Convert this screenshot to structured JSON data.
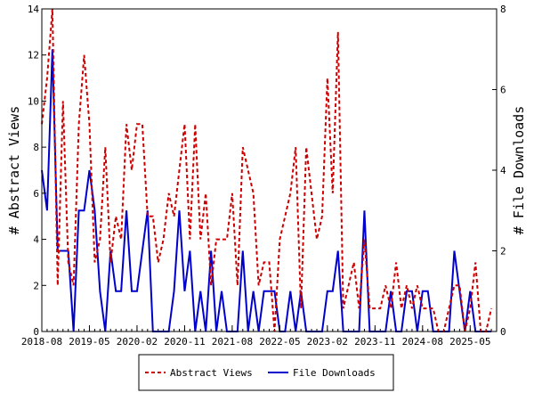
{
  "chart_data": {
    "type": "line",
    "xlabel": "",
    "ylabel": "# Abstract Views",
    "y2label": "# File Downloads",
    "ylim": [
      0,
      14
    ],
    "y2lim": [
      0,
      8
    ],
    "yticks": [
      0,
      2,
      4,
      6,
      8,
      10,
      12,
      14
    ],
    "y2ticks": [
      0,
      2,
      4,
      6,
      8
    ],
    "xlim": [
      "2018-08",
      "2025-10"
    ],
    "xtick_labels": [
      "2018-08",
      "2019-05",
      "2020-02",
      "2020-11",
      "2021-08",
      "2022-05",
      "2023-02",
      "2023-11",
      "2024-08",
      "2025-05"
    ],
    "grid": false,
    "legend_position": "bottom-center",
    "series": [
      {
        "name": "Abstract Views",
        "axis": "left",
        "color": "#cc0000",
        "style": "dashed",
        "x": [
          "2018-08",
          "2018-09",
          "2018-10",
          "2018-11",
          "2018-12",
          "2019-01",
          "2019-02",
          "2019-03",
          "2019-04",
          "2019-05",
          "2019-06",
          "2019-07",
          "2019-08",
          "2019-09",
          "2019-10",
          "2019-11",
          "2019-12",
          "2020-01",
          "2020-02",
          "2020-03",
          "2020-04",
          "2020-05",
          "2020-06",
          "2020-07",
          "2020-08",
          "2020-09",
          "2020-10",
          "2020-11",
          "2020-12",
          "2021-01",
          "2021-02",
          "2021-03",
          "2021-04",
          "2021-05",
          "2021-06",
          "2021-07",
          "2021-08",
          "2021-09",
          "2021-10",
          "2021-11",
          "2021-12",
          "2022-01",
          "2022-02",
          "2022-03",
          "2022-04",
          "2022-05",
          "2022-06",
          "2022-07",
          "2022-08",
          "2022-09",
          "2022-10",
          "2022-11",
          "2022-12",
          "2023-01",
          "2023-02",
          "2023-03",
          "2023-04",
          "2023-05",
          "2023-06",
          "2023-07",
          "2023-08",
          "2023-09",
          "2023-10",
          "2023-11",
          "2023-12",
          "2024-01",
          "2024-02",
          "2024-03",
          "2024-04",
          "2024-05",
          "2024-06",
          "2024-07",
          "2024-08",
          "2024-09",
          "2024-10",
          "2024-11",
          "2024-12",
          "2025-01",
          "2025-02",
          "2025-03",
          "2025-04",
          "2025-05",
          "2025-06",
          "2025-07",
          "2025-08",
          "2025-09"
        ],
        "values": [
          9,
          11,
          14,
          2,
          10,
          3,
          2,
          9,
          12,
          9,
          3,
          4,
          8,
          3,
          5,
          4,
          9,
          7,
          9,
          9,
          5,
          5,
          3,
          4,
          6,
          5,
          7,
          9,
          4,
          9,
          4,
          6,
          2,
          4,
          4,
          4,
          6,
          2,
          8,
          7,
          6,
          2,
          3,
          3,
          0,
          4,
          5,
          6,
          8,
          1,
          8,
          6,
          4,
          5,
          11,
          6,
          13,
          1,
          2,
          3,
          1,
          4,
          1,
          1,
          1,
          2,
          1,
          3,
          1,
          2,
          1,
          2,
          1,
          1,
          1,
          0,
          0,
          1,
          2,
          2,
          0,
          1,
          3,
          0,
          0,
          1
        ]
      },
      {
        "name": "File Downloads",
        "axis": "right",
        "color": "#0000cc",
        "style": "solid",
        "x": [
          "2018-08",
          "2018-09",
          "2018-10",
          "2018-11",
          "2018-12",
          "2019-01",
          "2019-02",
          "2019-03",
          "2019-04",
          "2019-05",
          "2019-06",
          "2019-07",
          "2019-08",
          "2019-09",
          "2019-10",
          "2019-11",
          "2019-12",
          "2020-01",
          "2020-02",
          "2020-03",
          "2020-04",
          "2020-05",
          "2020-06",
          "2020-07",
          "2020-08",
          "2020-09",
          "2020-10",
          "2020-11",
          "2020-12",
          "2021-01",
          "2021-02",
          "2021-03",
          "2021-04",
          "2021-05",
          "2021-06",
          "2021-07",
          "2021-08",
          "2021-09",
          "2021-10",
          "2021-11",
          "2021-12",
          "2022-01",
          "2022-02",
          "2022-03",
          "2022-04",
          "2022-05",
          "2022-06",
          "2022-07",
          "2022-08",
          "2022-09",
          "2022-10",
          "2022-11",
          "2022-12",
          "2023-01",
          "2023-02",
          "2023-03",
          "2023-04",
          "2023-05",
          "2023-06",
          "2023-07",
          "2023-08",
          "2023-09",
          "2023-10",
          "2023-11",
          "2023-12",
          "2024-01",
          "2024-02",
          "2024-03",
          "2024-04",
          "2024-05",
          "2024-06",
          "2024-07",
          "2024-08",
          "2024-09",
          "2024-10",
          "2024-11",
          "2024-12",
          "2025-01",
          "2025-02",
          "2025-03",
          "2025-04",
          "2025-05",
          "2025-06",
          "2025-07",
          "2025-08",
          "2025-09"
        ],
        "values": [
          4,
          3,
          7,
          2,
          2,
          2,
          0,
          3,
          3,
          4,
          3,
          1,
          0,
          2,
          1,
          1,
          3,
          1,
          1,
          2,
          3,
          0,
          0,
          0,
          0,
          1,
          3,
          1,
          2,
          0,
          1,
          0,
          2,
          0,
          1,
          0,
          0,
          0,
          2,
          0,
          1,
          0,
          1,
          1,
          1,
          0,
          0,
          1,
          0,
          1,
          0,
          0,
          0,
          0,
          1,
          1,
          2,
          0,
          0,
          0,
          0,
          3,
          0,
          0,
          0,
          0,
          1,
          0,
          0,
          1,
          1,
          0,
          1,
          1,
          0,
          0,
          0,
          0,
          2,
          1,
          0,
          1,
          0,
          0,
          0,
          0
        ]
      }
    ]
  }
}
